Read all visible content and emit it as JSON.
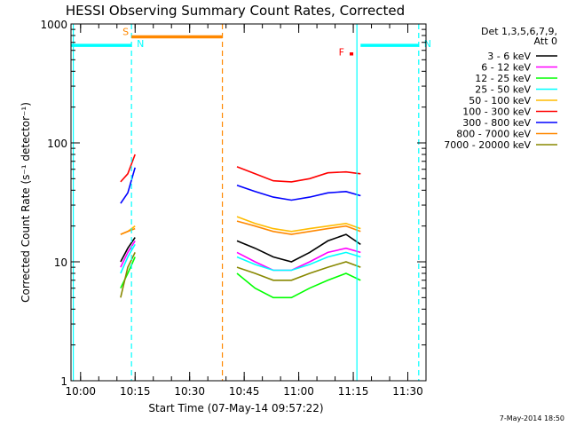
{
  "chart_data": {
    "type": "line",
    "title": "HESSI Observing Summary Count Rates, Corrected",
    "xlabel": "Start Time (07-May-14 09:57:22)",
    "ylabel": "Corrected Count Rate (s⁻¹ detector⁻¹)",
    "yscale": "log",
    "ylim": [
      1,
      1000
    ],
    "xlim": [
      "09:57:22",
      "11:35:00"
    ],
    "x_ticks": [
      "10:00",
      "10:15",
      "10:30",
      "10:45",
      "11:00",
      "11:15",
      "11:30"
    ],
    "y_ticks": [
      "1",
      "10",
      "100",
      "1000"
    ],
    "grid": false,
    "legend_position": "right",
    "legend_header": [
      "Det 1,3,5,6,7,9,",
      "Att 0"
    ],
    "series": [
      {
        "name": "3 - 6 keV",
        "color": "#000000",
        "segments": [
          {
            "x": [
              "10:11",
              "10:13",
              "10:15"
            ],
            "y": [
              10,
              13,
              16
            ]
          },
          {
            "x": [
              "10:43",
              "10:48",
              "10:53",
              "10:58",
              "11:03",
              "11:08",
              "11:13",
              "11:17"
            ],
            "y": [
              15,
              13,
              11,
              10,
              12,
              15,
              17,
              14
            ]
          }
        ]
      },
      {
        "name": "6 - 12 keV",
        "color": "#ff00ff",
        "segments": [
          {
            "x": [
              "10:11",
              "10:13",
              "10:15"
            ],
            "y": [
              9,
              12,
              15
            ]
          },
          {
            "x": [
              "10:43",
              "10:48",
              "10:53",
              "10:58",
              "11:03",
              "11:08",
              "11:13",
              "11:17"
            ],
            "y": [
              12,
              10,
              8.5,
              8.5,
              10,
              12,
              13,
              12
            ]
          }
        ]
      },
      {
        "name": "12 - 25 keV",
        "color": "#00ff00",
        "segments": [
          {
            "x": [
              "10:11",
              "10:13",
              "10:15"
            ],
            "y": [
              6,
              8,
              11
            ]
          },
          {
            "x": [
              "10:43",
              "10:48",
              "10:53",
              "10:58",
              "11:03",
              "11:08",
              "11:13",
              "11:17"
            ],
            "y": [
              8,
              6,
              5,
              5,
              6,
              7,
              8,
              7
            ]
          }
        ]
      },
      {
        "name": "25 - 50 keV",
        "color": "#00ffff",
        "segments": [
          {
            "x": [
              "10:11",
              "10:13",
              "10:15"
            ],
            "y": [
              8,
              11,
              14
            ]
          },
          {
            "x": [
              "10:43",
              "10:48",
              "10:53",
              "10:58",
              "11:03",
              "11:08",
              "11:13",
              "11:17"
            ],
            "y": [
              11,
              9.5,
              8.5,
              8.5,
              9.5,
              11,
              12,
              11
            ]
          }
        ]
      },
      {
        "name": "50 - 100 keV",
        "color": "#ffbb00",
        "segments": [
          {
            "x": [
              "10:11",
              "10:13",
              "10:15"
            ],
            "y": [
              17,
              18,
              20
            ]
          },
          {
            "x": [
              "10:43",
              "10:48",
              "10:53",
              "10:58",
              "11:03",
              "11:08",
              "11:13",
              "11:17"
            ],
            "y": [
              24,
              21,
              19,
              18,
              19,
              20,
              21,
              19
            ]
          }
        ]
      },
      {
        "name": "100 - 300 keV",
        "color": "#ff0000",
        "segments": [
          {
            "x": [
              "10:11",
              "10:13",
              "10:15"
            ],
            "y": [
              47,
              55,
              80
            ]
          },
          {
            "x": [
              "10:43",
              "10:48",
              "10:53",
              "10:58",
              "11:03",
              "11:08",
              "11:13",
              "11:17"
            ],
            "y": [
              63,
              55,
              48,
              47,
              50,
              56,
              57,
              55
            ]
          }
        ]
      },
      {
        "name": "300 - 800 keV",
        "color": "#0000ff",
        "segments": [
          {
            "x": [
              "10:11",
              "10:13",
              "10:15"
            ],
            "y": [
              31,
              38,
              62
            ]
          },
          {
            "x": [
              "10:43",
              "10:48",
              "10:53",
              "10:58",
              "11:03",
              "11:08",
              "11:13",
              "11:17"
            ],
            "y": [
              44,
              39,
              35,
              33,
              35,
              38,
              39,
              36
            ]
          }
        ]
      },
      {
        "name": "800 - 7000 keV",
        "color": "#ff8800",
        "segments": [
          {
            "x": [
              "10:11",
              "10:13",
              "10:15"
            ],
            "y": [
              17,
              18,
              19
            ]
          },
          {
            "x": [
              "10:43",
              "10:48",
              "10:53",
              "10:58",
              "11:03",
              "11:08",
              "11:13",
              "11:17"
            ],
            "y": [
              22,
              20,
              18,
              17,
              18,
              19,
              20,
              18
            ]
          }
        ]
      },
      {
        "name": "7000 - 20000 keV",
        "color": "#888800",
        "segments": [
          {
            "x": [
              "10:11",
              "10:13",
              "10:15"
            ],
            "y": [
              5,
              9,
              12
            ]
          },
          {
            "x": [
              "10:43",
              "10:48",
              "10:53",
              "10:58",
              "11:03",
              "11:08",
              "11:13",
              "11:17"
            ],
            "y": [
              9,
              8,
              7,
              7,
              8,
              9,
              10,
              9
            ]
          }
        ]
      }
    ],
    "flags": [
      {
        "label": "S",
        "color": "#ff8800",
        "x": [
          "10:14",
          "10:39"
        ],
        "y": 780
      },
      {
        "label": "N",
        "color": "#00ffff",
        "x": [
          "09:57",
          "10:14"
        ],
        "y": 660
      },
      {
        "label": "N",
        "color": "#00ffff",
        "x": [
          "11:17",
          "11:33"
        ],
        "y": 660
      },
      {
        "label": "F",
        "color": "#ff0000",
        "x": [
          "11:14",
          "11:15"
        ],
        "y": 560
      }
    ],
    "vlines": [
      {
        "x": "09:58",
        "color": "#00ffff",
        "style": "solid"
      },
      {
        "x": "10:14",
        "color": "#00ffff",
        "style": "dashed"
      },
      {
        "x": "10:39",
        "color": "#ff8800",
        "style": "dashed"
      },
      {
        "x": "11:16",
        "color": "#00ffff",
        "style": "solid"
      },
      {
        "x": "11:33",
        "color": "#00ffff",
        "style": "dashed"
      }
    ],
    "flag_text": [
      "S",
      "N",
      "F"
    ],
    "timestamp": "7-May-2014 18:50"
  }
}
